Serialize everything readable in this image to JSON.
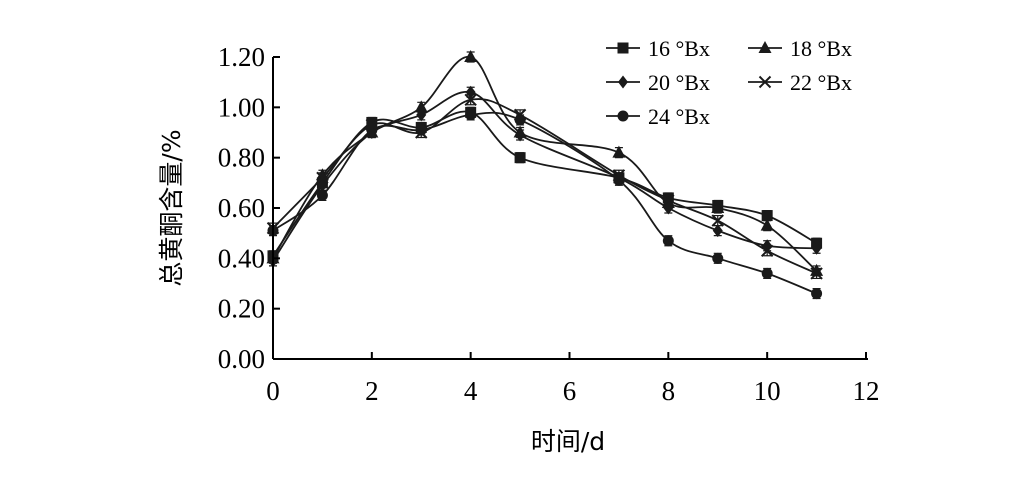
{
  "chart_data": {
    "type": "line",
    "xlabel": "时间/d",
    "ylabel": "总黄酮含量/%",
    "xlim": [
      0,
      12
    ],
    "ylim": [
      0,
      1.2
    ],
    "x_ticks": [
      "0",
      "2",
      "4",
      "6",
      "8",
      "10",
      "12"
    ],
    "y_ticks": [
      "0.00",
      "0.20",
      "0.40",
      "0.60",
      "0.80",
      "1.00",
      "1.20"
    ],
    "grid": false,
    "legend_position": "top-right",
    "line_color": "#1a1a1a",
    "x": [
      0,
      1,
      2,
      3,
      4,
      5,
      7,
      8,
      9,
      10,
      11
    ],
    "series": [
      {
        "name": "16 °Bx",
        "marker": "square",
        "values": [
          0.41,
          0.7,
          0.94,
          0.92,
          0.98,
          0.8,
          0.72,
          0.64,
          0.61,
          0.57,
          0.46
        ]
      },
      {
        "name": "18 °Bx",
        "marker": "triangle",
        "values": [
          0.4,
          0.73,
          0.9,
          1.0,
          1.2,
          0.9,
          0.82,
          0.62,
          0.6,
          0.53,
          0.35
        ]
      },
      {
        "name": "20 °Bx",
        "marker": "diamond",
        "values": [
          0.39,
          0.69,
          0.9,
          0.97,
          1.06,
          0.89,
          0.72,
          0.6,
          0.51,
          0.45,
          0.44
        ]
      },
      {
        "name": "22 °Bx",
        "marker": "x",
        "values": [
          0.52,
          0.72,
          0.93,
          0.9,
          1.03,
          0.97,
          0.73,
          0.63,
          0.55,
          0.43,
          0.34
        ]
      },
      {
        "name": "24 °Bx",
        "marker": "circle",
        "values": [
          0.51,
          0.65,
          0.91,
          0.91,
          0.97,
          0.95,
          0.71,
          0.47,
          0.4,
          0.34,
          0.26
        ]
      }
    ]
  }
}
